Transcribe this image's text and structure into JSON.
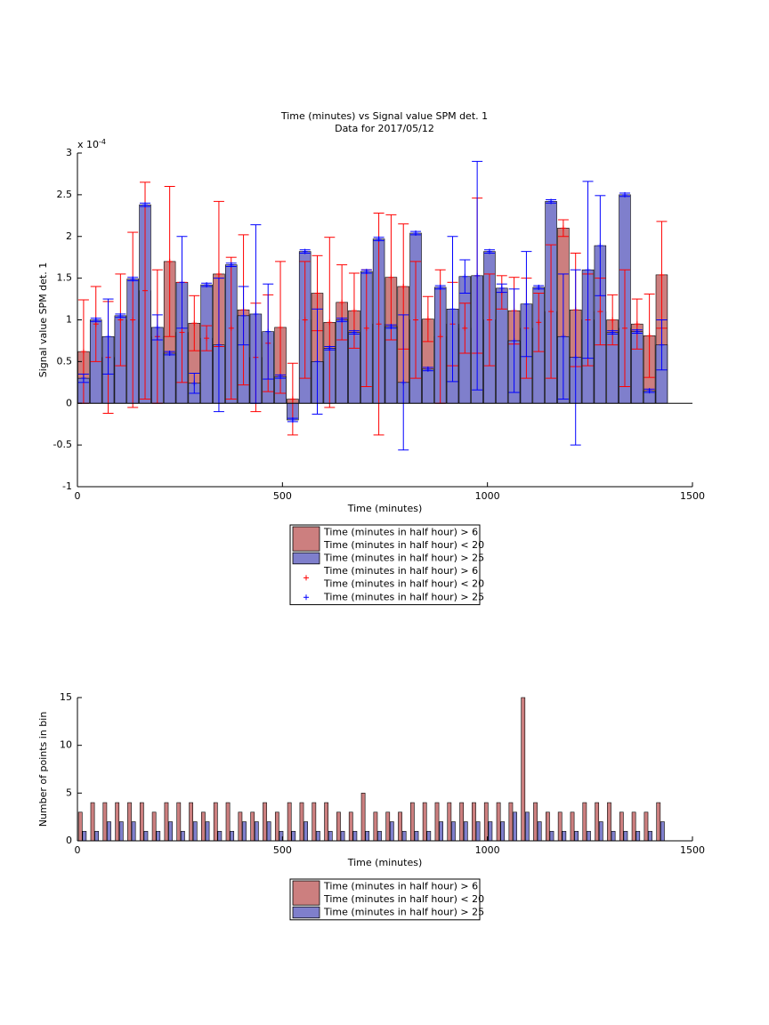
{
  "chart_data": [
    {
      "type": "bar",
      "title": "Time (minutes) vs Signal value SPM det. 1",
      "subtitle": "Data for 2017/05/12",
      "x_label": "Time (minutes)",
      "y_label": "Signal value SPM det. 1",
      "y_multiplier": "x 10",
      "y_multiplier_exponent": "-4",
      "x": [
        15,
        45,
        75,
        105,
        135,
        165,
        195,
        225,
        255,
        285,
        315,
        345,
        375,
        405,
        435,
        465,
        495,
        525,
        555,
        585,
        615,
        645,
        675,
        705,
        735,
        765,
        795,
        825,
        855,
        885,
        915,
        945,
        975,
        1005,
        1035,
        1065,
        1095,
        1125,
        1155,
        1185,
        1215,
        1245,
        1275,
        1305,
        1335,
        1365,
        1395,
        1425
      ],
      "series": [
        {
          "name": [
            "Time (minutes in half hour) > 6",
            "Time (minutes in half hour) < 20"
          ],
          "color": "#cc7f7f",
          "error_color": "#ff0000",
          "values": [
            0.62,
            0.95,
            0.55,
            1.0,
            1.0,
            1.35,
            0.8,
            1.7,
            0.85,
            0.96,
            0.78,
            1.55,
            0.9,
            1.12,
            0.55,
            0.72,
            0.91,
            0.05,
            1.0,
            1.32,
            0.97,
            1.21,
            1.11,
            0.9,
            0.95,
            1.51,
            1.4,
            1.0,
            1.01,
            0.8,
            0.95,
            0.9,
            1.53,
            1.0,
            1.33,
            1.11,
            0.9,
            0.97,
            1.1,
            2.1,
            1.12,
            1.0,
            1.1,
            1.0,
            0.9,
            0.95,
            0.81,
            1.54
          ],
          "errors": [
            0.62,
            0.45,
            0.67,
            0.55,
            1.05,
            1.3,
            0.8,
            0.9,
            0.6,
            0.33,
            0.15,
            0.87,
            0.85,
            0.9,
            0.65,
            0.58,
            0.79,
            0.43,
            0.7,
            0.45,
            1.02,
            0.45,
            0.45,
            0.7,
            1.33,
            0.75,
            0.75,
            0.7,
            0.27,
            0.8,
            0.5,
            0.3,
            0.93,
            0.55,
            0.2,
            0.4,
            0.6,
            0.35,
            0.8,
            0.1,
            0.68,
            0.55,
            0.4,
            0.3,
            0.7,
            0.3,
            0.5,
            0.64
          ]
        },
        {
          "name": [
            "Time (minutes in half hour) > 25"
          ],
          "color": "#7f7fcc",
          "error_color": "#0000ff",
          "values": [
            0.3,
            1.0,
            0.8,
            1.05,
            1.49,
            2.38,
            0.91,
            0.6,
            1.45,
            0.24,
            1.42,
            0.7,
            1.66,
            1.05,
            1.07,
            0.86,
            0.32,
            -0.2,
            1.82,
            0.5,
            0.66,
            1.0,
            0.85,
            1.58,
            1.97,
            0.92,
            0.25,
            2.04,
            0.41,
            1.39,
            1.13,
            1.52,
            1.53,
            1.82,
            1.38,
            0.75,
            1.19,
            1.39,
            2.42,
            0.8,
            0.55,
            1.6,
            1.89,
            0.85,
            2.5,
            0.86,
            0.15,
            0.7
          ],
          "errors": [
            0.05,
            0.02,
            0.45,
            0.02,
            0.02,
            0.02,
            0.15,
            0.02,
            0.55,
            0.12,
            0.02,
            0.8,
            0.02,
            0.35,
            1.07,
            0.57,
            0.02,
            0.02,
            0.02,
            0.63,
            0.02,
            0.02,
            0.02,
            0.02,
            0.02,
            0.02,
            0.81,
            0.02,
            0.02,
            0.02,
            0.87,
            0.2,
            1.37,
            0.02,
            0.05,
            0.62,
            0.63,
            0.02,
            0.02,
            0.75,
            1.05,
            1.06,
            0.6,
            0.02,
            0.02,
            0.02,
            0.02,
            0.3
          ]
        }
      ],
      "xlim": [
        0,
        1500
      ],
      "xticks": [
        0,
        500,
        1000,
        1500
      ],
      "ylim": [
        -1,
        3
      ],
      "yticks": [
        -1,
        -0.5,
        0,
        0.5,
        1,
        1.5,
        2,
        2.5,
        3
      ]
    },
    {
      "type": "bar",
      "x_label": "Time (minutes)",
      "y_label": "Number of points in bin",
      "x": [
        15,
        45,
        75,
        105,
        135,
        165,
        195,
        225,
        255,
        285,
        315,
        345,
        375,
        405,
        435,
        465,
        495,
        525,
        555,
        585,
        615,
        645,
        675,
        705,
        735,
        765,
        795,
        825,
        855,
        885,
        915,
        945,
        975,
        1005,
        1035,
        1065,
        1095,
        1125,
        1155,
        1185,
        1215,
        1245,
        1275,
        1305,
        1335,
        1365,
        1395,
        1425
      ],
      "series": [
        {
          "name": [
            "Time (minutes in half hour) > 6",
            "Time (minutes in half hour) < 20"
          ],
          "color": "#cc7f7f",
          "values": [
            3,
            4,
            4,
            4,
            4,
            4,
            3,
            4,
            4,
            4,
            3,
            4,
            4,
            3,
            3,
            4,
            3,
            4,
            4,
            4,
            4,
            3,
            3,
            5,
            3,
            3,
            3,
            4,
            4,
            4,
            4,
            4,
            4,
            4,
            4,
            4,
            15,
            4,
            3,
            3,
            3,
            4,
            4,
            4,
            3,
            3,
            3,
            4
          ]
        },
        {
          "name": [
            "Time (minutes in half hour) > 25"
          ],
          "color": "#7f7fcc",
          "values": [
            1,
            1,
            2,
            2,
            2,
            1,
            1,
            2,
            1,
            2,
            2,
            1,
            1,
            2,
            2,
            2,
            1,
            1,
            2,
            1,
            1,
            1,
            1,
            1,
            1,
            2,
            1,
            1,
            1,
            2,
            2,
            2,
            2,
            2,
            2,
            3,
            3,
            2,
            1,
            1,
            1,
            1,
            2,
            1,
            1,
            1,
            1,
            2
          ]
        }
      ],
      "xlim": [
        0,
        1500
      ],
      "xticks": [
        0,
        500,
        1000,
        1500
      ],
      "ylim": [
        0,
        15
      ],
      "yticks": [
        0,
        5,
        10,
        15
      ]
    }
  ]
}
